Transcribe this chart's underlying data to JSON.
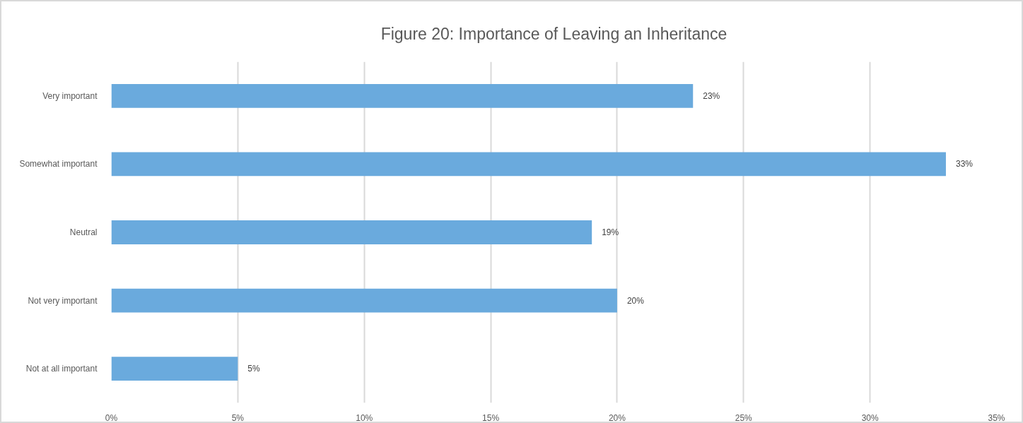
{
  "chart_data": {
    "type": "bar",
    "orientation": "horizontal",
    "title": "Figure 20: Importance of Leaving an Inheritance",
    "categories": [
      "Very important",
      "Somewhat important",
      "Neutral",
      "Not very important",
      "Not at all important"
    ],
    "values": [
      23,
      33,
      19,
      20,
      5
    ],
    "value_labels": [
      "23%",
      "33%",
      "19%",
      "20%",
      "5%"
    ],
    "color": "#6aaadd",
    "xlim": [
      0,
      35
    ],
    "xticks": [
      {
        "value": 0,
        "label": "0%"
      },
      {
        "value": 5,
        "label": "5%"
      },
      {
        "value": 10,
        "label": "10%"
      },
      {
        "value": 15,
        "label": "15%"
      },
      {
        "value": 20,
        "label": "20%"
      },
      {
        "value": 25,
        "label": "25%"
      },
      {
        "value": 30,
        "label": "30%"
      },
      {
        "value": 35,
        "label": "35%"
      }
    ],
    "grid": "x"
  }
}
